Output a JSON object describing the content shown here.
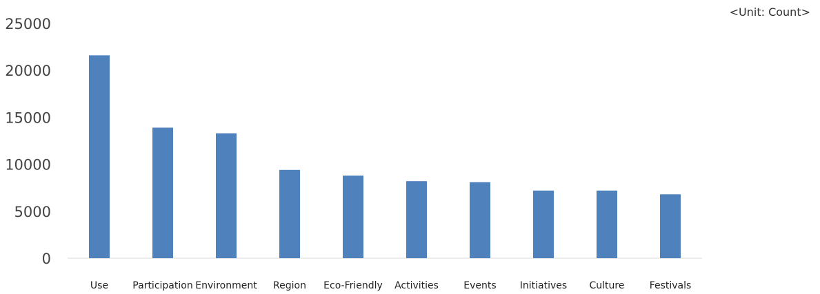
{
  "unit_note": "<Unit: Count>",
  "chart_data": {
    "type": "bar",
    "title": "",
    "xlabel": "",
    "ylabel": "",
    "categories": [
      "Use",
      "Participation",
      "Environment",
      "Region",
      "Eco-Friendly",
      "Activities",
      "Events",
      "Initiatives",
      "Culture",
      "Festivals"
    ],
    "values": [
      21600,
      13900,
      13300,
      9400,
      8800,
      8200,
      8100,
      7200,
      7200,
      6800
    ],
    "ylim": [
      0,
      25000
    ],
    "yticks": [
      0,
      5000,
      10000,
      15000,
      20000,
      25000
    ],
    "grid": false,
    "legend": "none",
    "bar_color": "#4f81bd",
    "axis_color": "#d9d9d9"
  }
}
